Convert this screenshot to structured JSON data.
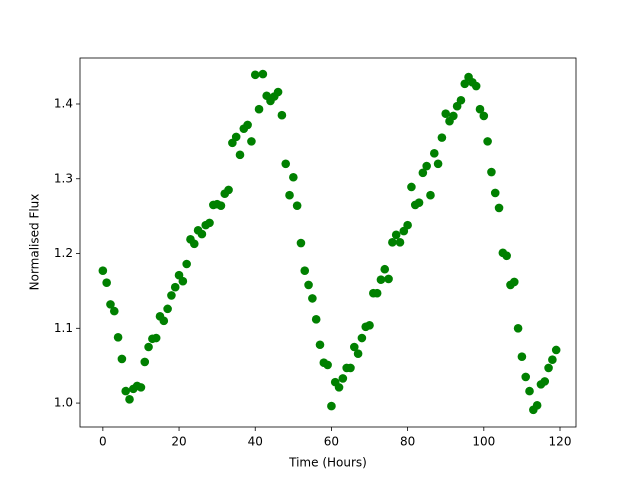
{
  "chart_data": {
    "type": "scatter",
    "xlabel": "Time (Hours)",
    "ylabel": "Normalised Flux",
    "color": "#008000",
    "xlim": [
      -6,
      124.2
    ],
    "ylim": [
      0.968,
      1.4615
    ],
    "xticks": [
      0,
      20,
      40,
      60,
      80,
      100,
      120
    ],
    "yticks": [
      {
        "value": 1,
        "label": "1.0"
      },
      1.1,
      1.2,
      1.3,
      1.4
    ],
    "x": [
      0,
      1,
      2,
      3,
      4,
      5,
      6,
      7,
      8,
      9,
      10,
      11,
      12,
      13,
      14,
      15,
      16,
      17,
      18,
      19,
      20,
      21,
      22,
      23,
      24,
      25,
      26,
      27,
      28,
      29,
      30,
      31,
      32,
      33,
      34,
      35,
      36,
      37,
      38,
      39,
      40,
      41,
      42,
      43,
      44,
      45,
      46,
      47,
      48,
      49,
      50,
      51,
      52,
      53,
      54,
      55,
      56,
      57,
      58,
      59,
      60,
      61,
      62,
      63,
      64,
      65,
      66,
      67,
      68,
      69,
      70,
      71,
      72,
      73,
      74,
      75,
      76,
      77,
      78,
      79,
      80,
      81,
      82,
      83,
      84,
      85,
      86,
      87,
      88,
      89,
      90,
      91,
      92,
      93,
      94,
      95,
      96,
      97,
      98,
      99,
      100,
      101,
      102,
      103,
      104,
      105,
      106,
      107,
      108,
      109,
      110,
      111,
      112,
      113,
      114,
      115,
      116,
      117,
      118,
      119
    ],
    "y": [
      1.177,
      1.161,
      1.132,
      1.123,
      1.088,
      1.059,
      1.016,
      1.005,
      1.019,
      1.023,
      1.021,
      1.055,
      1.075,
      1.086,
      1.087,
      1.116,
      1.11,
      1.126,
      1.144,
      1.155,
      1.171,
      1.163,
      1.186,
      1.219,
      1.213,
      1.231,
      1.226,
      1.238,
      1.241,
      1.265,
      1.266,
      1.264,
      1.28,
      1.285,
      1.348,
      1.356,
      1.332,
      1.367,
      1.372,
      1.35,
      1.439,
      1.393,
      1.44,
      1.411,
      1.404,
      1.41,
      1.416,
      1.385,
      1.32,
      1.278,
      1.302,
      1.264,
      1.214,
      1.177,
      1.158,
      1.14,
      1.112,
      1.078,
      1.054,
      1.051,
      0.996,
      1.028,
      1.021,
      1.033,
      1.047,
      1.047,
      1.075,
      1.066,
      1.087,
      1.102,
      1.104,
      1.147,
      1.147,
      1.165,
      1.179,
      1.166,
      1.215,
      1.225,
      1.215,
      1.23,
      1.238,
      1.289,
      1.265,
      1.268,
      1.308,
      1.317,
      1.278,
      1.334,
      1.32,
      1.355,
      1.387,
      1.377,
      1.384,
      1.397,
      1.405,
      1.427,
      1.436,
      1.429,
      1.424,
      1.393,
      1.384,
      1.35,
      1.309,
      1.281,
      1.261,
      1.201,
      1.197,
      1.158,
      1.162,
      1.1,
      1.062,
      1.035,
      1.016,
      0.991,
      0.997,
      1.025,
      1.029,
      1.047,
      1.058,
      1.071
    ]
  }
}
